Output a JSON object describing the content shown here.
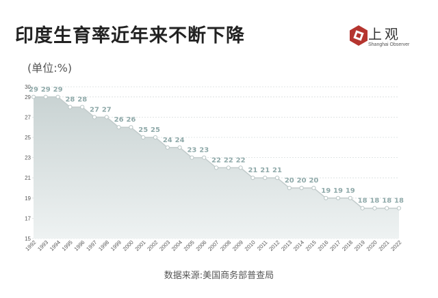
{
  "title": "印度生育率近年来不断下降",
  "unit_label": "(单位:%)",
  "logo": {
    "text": "上观",
    "subtitle": "Shanghai Observer"
  },
  "source": "数据来源:美国商务部普查局",
  "colors": {
    "area_top": "#c9d3d3",
    "area_bottom": "#eef2f2",
    "line": "#c3cccc",
    "point_fill": "#ffffff",
    "label": "#8fa9a9",
    "logo_red": "#b5352f"
  },
  "chart_data": {
    "type": "area",
    "title": "印度生育率近年来不断下降",
    "ylabel": "(单位:%)",
    "xlabel": "",
    "ylim": [
      15,
      30
    ],
    "yticks": [
      15,
      17,
      19,
      21,
      23,
      25,
      27,
      29,
      30
    ],
    "grid": true,
    "categories": [
      "1992",
      "1993",
      "1994",
      "1995",
      "1996",
      "1997",
      "1998",
      "1999",
      "2000",
      "2001",
      "2002",
      "2003",
      "2004",
      "2005",
      "2006",
      "2007",
      "2008",
      "2009",
      "2010",
      "2011",
      "2012",
      "2013",
      "2014",
      "2015",
      "2016",
      "2017",
      "2018",
      "2019",
      "2020",
      "2021",
      "2022"
    ],
    "values": [
      29,
      29,
      29,
      28,
      28,
      27,
      27,
      26,
      26,
      25,
      25,
      24,
      24,
      23,
      23,
      22,
      22,
      22,
      21,
      21,
      21,
      20,
      20,
      20,
      19,
      19,
      19,
      18,
      18,
      18,
      18
    ],
    "data_labels": [
      "29",
      "29",
      "29",
      "28",
      "28",
      "27",
      "27",
      "26",
      "26",
      "25",
      "25",
      "24",
      "24",
      "23",
      "23",
      "22",
      "22",
      "22",
      "21",
      "21",
      "21",
      "20",
      "20",
      "20",
      "19",
      "19",
      "19",
      "18",
      "18",
      "18",
      "18"
    ]
  }
}
